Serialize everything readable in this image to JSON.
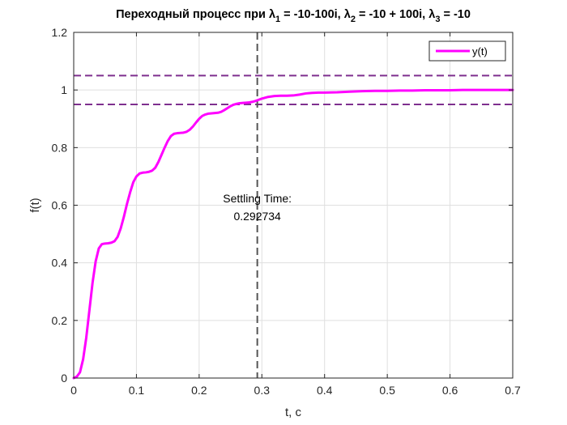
{
  "chart_data": {
    "type": "line",
    "title": {
      "prefix": "Переходный процесс при ",
      "parts": [
        {
          "sym": "λ",
          "sub": "1",
          "val": " = -10-100i, "
        },
        {
          "sym": "λ",
          "sub": "2",
          "val": " = -10 + 100i, "
        },
        {
          "sym": "λ",
          "sub": "3",
          "val": " = -10"
        }
      ]
    },
    "xlabel": "t, c",
    "ylabel": "f(t)",
    "xlim": [
      0,
      0.7
    ],
    "ylim": [
      0,
      1.2
    ],
    "xticks": [
      "0",
      "0.1",
      "0.2",
      "0.3",
      "0.4",
      "0.5",
      "0.6",
      "0.7"
    ],
    "xtick_values": [
      0,
      0.1,
      0.2,
      0.3,
      0.4,
      0.5,
      0.6,
      0.7
    ],
    "yticks": [
      "0",
      "0.2",
      "0.4",
      "0.6",
      "0.8",
      "1",
      "1.2"
    ],
    "ytick_values": [
      0,
      0.2,
      0.4,
      0.6,
      0.8,
      1.0,
      1.2
    ],
    "grid": true,
    "legend": {
      "location": "top-right",
      "entries": [
        "y(t)"
      ]
    },
    "series": [
      {
        "name": "y(t)",
        "color": "#ff00ff",
        "x": [
          0,
          0.005,
          0.01,
          0.015,
          0.02,
          0.025,
          0.03,
          0.035,
          0.04,
          0.045,
          0.05,
          0.055,
          0.06,
          0.065,
          0.07,
          0.075,
          0.08,
          0.085,
          0.09,
          0.095,
          0.1,
          0.105,
          0.11,
          0.115,
          0.12,
          0.125,
          0.13,
          0.135,
          0.14,
          0.145,
          0.15,
          0.155,
          0.16,
          0.165,
          0.17,
          0.175,
          0.18,
          0.185,
          0.19,
          0.195,
          0.2,
          0.205,
          0.21,
          0.215,
          0.22,
          0.225,
          0.23,
          0.235,
          0.24,
          0.245,
          0.25,
          0.255,
          0.26,
          0.265,
          0.27,
          0.275,
          0.28,
          0.285,
          0.29,
          0.295,
          0.3,
          0.31,
          0.32,
          0.33,
          0.34,
          0.35,
          0.36,
          0.37,
          0.38,
          0.39,
          0.4,
          0.42,
          0.44,
          0.46,
          0.48,
          0.5,
          0.52,
          0.54,
          0.56,
          0.58,
          0.6,
          0.62,
          0.64,
          0.66,
          0.68,
          0.7
        ],
        "y": [
          0,
          0.005,
          0.02,
          0.065,
          0.14,
          0.235,
          0.33,
          0.405,
          0.45,
          0.465,
          0.467,
          0.468,
          0.47,
          0.475,
          0.49,
          0.52,
          0.56,
          0.605,
          0.645,
          0.68,
          0.7,
          0.71,
          0.713,
          0.714,
          0.716,
          0.72,
          0.73,
          0.75,
          0.775,
          0.8,
          0.823,
          0.84,
          0.848,
          0.85,
          0.851,
          0.852,
          0.855,
          0.862,
          0.873,
          0.887,
          0.9,
          0.91,
          0.915,
          0.918,
          0.919,
          0.92,
          0.921,
          0.924,
          0.93,
          0.937,
          0.944,
          0.949,
          0.952,
          0.954,
          0.955,
          0.956,
          0.957,
          0.959,
          0.962,
          0.966,
          0.97,
          0.976,
          0.979,
          0.98,
          0.98,
          0.981,
          0.984,
          0.988,
          0.99,
          0.991,
          0.991,
          0.992,
          0.994,
          0.996,
          0.997,
          0.997,
          0.998,
          0.998,
          0.999,
          0.999,
          0.999,
          1.0,
          1.0,
          1.0,
          1.0,
          1.0
        ]
      }
    ],
    "reference_lines": {
      "horizontal": [
        {
          "y": 1.05,
          "color": "#7e2f8e",
          "style": "dashed"
        },
        {
          "y": 0.95,
          "color": "#7e2f8e",
          "style": "dashed"
        }
      ],
      "vertical": [
        {
          "x": 0.292734,
          "color": "#555555",
          "style": "dashed"
        }
      ]
    },
    "annotation": {
      "line1": "Settling Time:",
      "line2": "0.292734",
      "x": 0.292734,
      "y": 0.6
    }
  }
}
